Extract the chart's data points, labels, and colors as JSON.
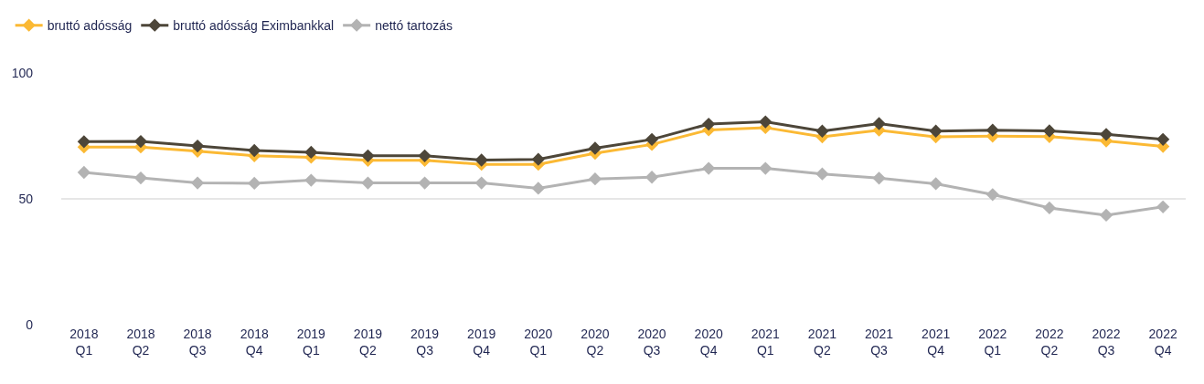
{
  "chart_data": {
    "type": "line",
    "categories": [
      "2018\nQ1",
      "2018\nQ2",
      "2018\nQ3",
      "2018\nQ4",
      "2019\nQ1",
      "2019\nQ2",
      "2019\nQ3",
      "2019\nQ4",
      "2020\nQ1",
      "2020\nQ2",
      "2020\nQ3",
      "2020\nQ4",
      "2021\nQ1",
      "2021\nQ2",
      "2021\nQ3",
      "2021\nQ4",
      "2022\nQ1",
      "2022\nQ2",
      "2022\nQ3",
      "2022\nQ4"
    ],
    "series": [
      {
        "name": "bruttó adósság",
        "color": "#fbb934",
        "values": [
          70.6,
          70.6,
          68.9,
          67.1,
          66.5,
          65.3,
          65.3,
          63.7,
          63.7,
          68.1,
          71.6,
          77.4,
          78.3,
          74.6,
          77.3,
          74.6,
          74.9,
          74.7,
          73.0,
          70.8
        ]
      },
      {
        "name": "bruttó adósság Eximbankkal",
        "color": "#4d4639",
        "values": [
          72.7,
          72.8,
          71.0,
          69.2,
          68.5,
          67.1,
          67.1,
          65.4,
          65.7,
          70.1,
          73.6,
          79.7,
          80.6,
          76.9,
          79.9,
          76.9,
          77.3,
          77.0,
          75.6,
          73.6
        ]
      },
      {
        "name": "nettó tartozás",
        "color": "#b3b3b3",
        "values": [
          60.5,
          58.3,
          56.3,
          56.2,
          57.4,
          56.3,
          56.3,
          56.3,
          54.2,
          57.9,
          58.6,
          62.1,
          62.1,
          59.9,
          58.2,
          56.0,
          51.7,
          46.4,
          43.5,
          46.8
        ]
      }
    ],
    "ylim": [
      0,
      100
    ],
    "yticks": [
      0,
      50,
      100
    ],
    "grid": "y",
    "legend": "top left",
    "marker": "diamond",
    "line_style": "solid"
  }
}
